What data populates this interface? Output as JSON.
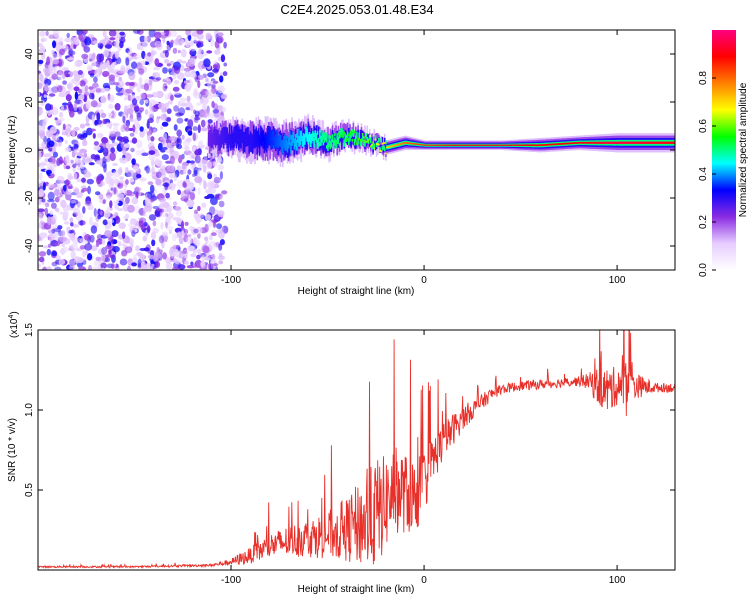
{
  "title": "C2E4.2025.053.01.48.E34",
  "chart_data": [
    {
      "type": "heatmap",
      "name": "spectrogram",
      "xlabel": "Height of straight line (km)",
      "ylabel": "Frequency (Hz)",
      "xlim": [
        -200,
        130
      ],
      "ylim": [
        -50,
        50
      ],
      "xticks": [
        -100,
        0,
        100
      ],
      "xtick_labels": [
        "-100",
        "0",
        "100"
      ],
      "yticks": [
        -40,
        -20,
        0,
        20,
        40
      ],
      "ytick_labels": [
        "-40",
        "-20",
        "0",
        "20",
        "40"
      ],
      "noise_region": {
        "x": [
          -200,
          -103
        ],
        "y": [
          -50,
          50
        ]
      },
      "signal_track": {
        "x": [
          -112,
          -100,
          -90,
          -80,
          -70,
          -60,
          -50,
          -40,
          -30,
          -20,
          -10,
          0,
          20,
          40,
          60,
          80,
          100,
          130
        ],
        "center_hz": [
          5,
          5,
          4,
          4,
          3,
          6,
          3,
          6,
          4,
          1,
          3,
          2,
          2,
          2,
          2,
          3,
          3,
          3
        ],
        "halfwidth_hz": [
          6,
          7,
          8,
          8,
          8,
          7,
          6,
          5,
          4,
          3,
          3,
          2,
          2,
          2,
          3,
          3,
          4,
          4
        ],
        "amplitude": [
          0.25,
          0.3,
          0.3,
          0.35,
          0.4,
          0.45,
          0.5,
          0.55,
          0.6,
          0.7,
          0.8,
          0.85,
          0.9,
          0.9,
          0.88,
          0.9,
          0.95,
          0.9
        ]
      },
      "colorbar": {
        "label": "Normalized spectral amplitude",
        "range": [
          0,
          1
        ],
        "ticks": [
          0.0,
          0.2,
          0.4,
          0.6,
          0.8
        ],
        "tick_labels": [
          "0.0",
          "0.2",
          "0.4",
          "0.6",
          "0.8"
        ],
        "colors": [
          "#ffffff",
          "#e6ccff",
          "#8a2be2",
          "#0000ff",
          "#00ffff",
          "#00ff00",
          "#ffff00",
          "#ff8000",
          "#ff0000",
          "#ff0080"
        ]
      }
    },
    {
      "type": "line",
      "name": "snr",
      "xlabel": "Height of straight line (km)",
      "ylabel": "SNR (10 * v/v)",
      "scale_label": "(x10",
      "scale_exponent": "4",
      "scale_close": ")",
      "xlim": [
        -200,
        130
      ],
      "ylim": [
        0,
        1.5
      ],
      "xticks": [
        -100,
        0,
        100
      ],
      "xtick_labels": [
        "-100",
        "0",
        "100"
      ],
      "yticks": [
        0.5,
        1.0,
        1.5
      ],
      "ytick_labels": [
        "0.5",
        "1.0",
        "1.5"
      ],
      "color": "#e8302a",
      "series": [
        {
          "name": "SNR",
          "x": [
            -200,
            -150,
            -110,
            -100,
            -95,
            -90,
            -85,
            -80,
            -70,
            -60,
            -50,
            -40,
            -35,
            -30,
            -25,
            -20,
            -15,
            -10,
            -5,
            0,
            5,
            10,
            15,
            20,
            25,
            30,
            35,
            40,
            50,
            60,
            70,
            80,
            85,
            90,
            95,
            100,
            105,
            110,
            120,
            130
          ],
          "y": [
            0.02,
            0.02,
            0.03,
            0.05,
            0.07,
            0.09,
            0.12,
            0.15,
            0.18,
            0.2,
            0.22,
            0.25,
            0.28,
            0.3,
            0.35,
            0.42,
            0.5,
            0.48,
            0.45,
            0.55,
            0.7,
            0.8,
            0.88,
            0.95,
            1.0,
            1.05,
            1.1,
            1.13,
            1.15,
            1.16,
            1.17,
            1.18,
            1.18,
            1.15,
            1.12,
            1.15,
            1.2,
            1.15,
            1.14,
            1.14
          ],
          "noise": [
            0.005,
            0.005,
            0.008,
            0.02,
            0.04,
            0.05,
            0.07,
            0.08,
            0.1,
            0.12,
            0.15,
            0.2,
            0.25,
            0.3,
            0.35,
            0.3,
            0.28,
            0.25,
            0.25,
            0.2,
            0.15,
            0.12,
            0.1,
            0.08,
            0.06,
            0.05,
            0.04,
            0.03,
            0.03,
            0.03,
            0.03,
            0.03,
            0.05,
            0.12,
            0.15,
            0.12,
            0.25,
            0.08,
            0.03,
            0.03
          ]
        }
      ]
    }
  ]
}
